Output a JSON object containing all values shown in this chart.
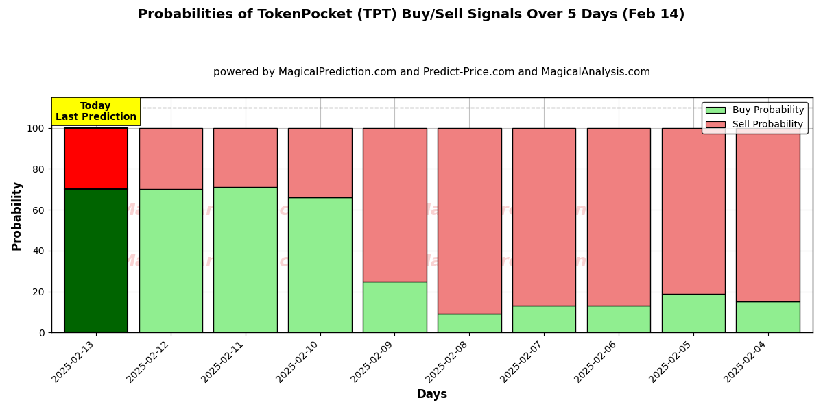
{
  "title": "Probabilities of TokenPocket (TPT) Buy/Sell Signals Over 5 Days (Feb 14)",
  "subtitle": "powered by MagicalPrediction.com and Predict-Price.com and MagicalAnalysis.com",
  "xlabel": "Days",
  "ylabel": "Probability",
  "dates": [
    "2025-02-13",
    "2025-02-12",
    "2025-02-11",
    "2025-02-10",
    "2025-02-09",
    "2025-02-08",
    "2025-02-07",
    "2025-02-06",
    "2025-02-05",
    "2025-02-04"
  ],
  "buy_values": [
    70,
    70,
    71,
    66,
    25,
    9,
    13,
    13,
    19,
    15
  ],
  "sell_values": [
    30,
    30,
    29,
    34,
    75,
    91,
    87,
    87,
    81,
    85
  ],
  "today_bar_buy_color": "#006400",
  "today_bar_sell_color": "#FF0000",
  "normal_bar_buy_color": "#90EE90",
  "normal_bar_sell_color": "#F08080",
  "bar_edge_color": "#000000",
  "bar_width": 0.85,
  "ylim": [
    0,
    115
  ],
  "yticks": [
    0,
    20,
    40,
    60,
    80,
    100
  ],
  "dashed_line_y": 110,
  "dashed_line_color": "#808080",
  "grid_color": "#C0C0C0",
  "bg_color": "#FFFFFF",
  "today_label_text": "Today\nLast Prediction",
  "today_label_bg": "#FFFF00",
  "today_label_fontsize": 10,
  "watermark_color": "#F08080",
  "watermark_alpha": 0.35,
  "legend_buy_label": "Buy Probability",
  "legend_sell_label": "Sell Probability",
  "title_fontsize": 14,
  "subtitle_fontsize": 11,
  "axis_label_fontsize": 12,
  "tick_fontsize": 10
}
